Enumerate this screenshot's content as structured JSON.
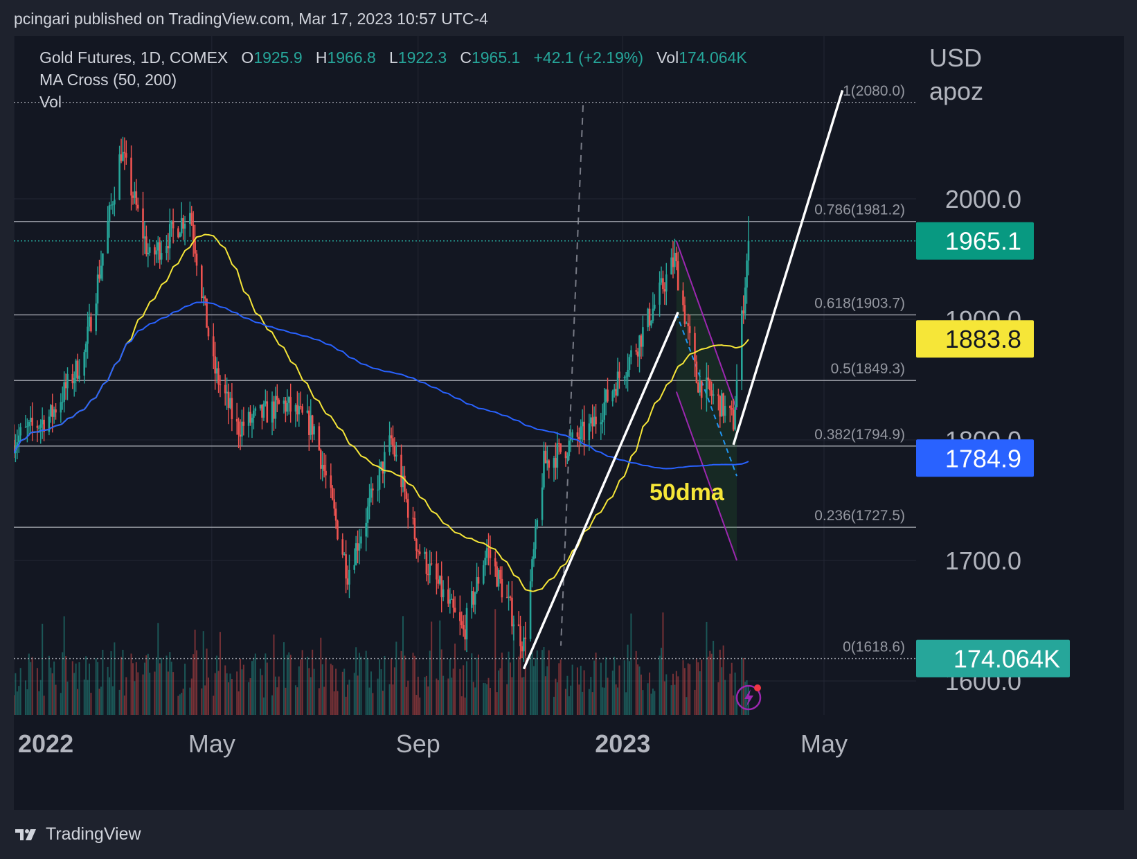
{
  "header": {
    "published_line": "pcingari published on TradingView.com, Mar 17, 2023 10:57 UTC-4"
  },
  "legend": {
    "symbol": "Gold Futures, 1D, COMEX",
    "o_label": "O",
    "o_value": "1925.9",
    "h_label": "H",
    "h_value": "1966.8",
    "l_label": "L",
    "l_value": "1922.3",
    "c_label": "C",
    "c_value": "1965.1",
    "change": "+42.1 (+2.19%)",
    "vol_label": "Vol",
    "vol_value": "174.064K",
    "indicator": "MA Cross (50, 200)",
    "vol_indicator": "Vol"
  },
  "axis": {
    "currency_line1": "USD",
    "currency_line2": "apoz"
  },
  "footer": {
    "brand": "TradingView"
  },
  "colors": {
    "background": "#131722",
    "up": "#26a69a",
    "down": "#ef5350",
    "ma50": "#f6e638",
    "ma200": "#2962ff",
    "fib": "#9598a1",
    "channel": "#9c27b0"
  },
  "chart_data": {
    "type": "candlestick",
    "title": "Gold Futures, 1D, COMEX",
    "ylabel": "USD apoz",
    "ylim": [
      1550,
      2130
    ],
    "y_ticks": [
      "1600.0",
      "1700.0",
      "1800.0",
      "1900.0",
      "2000.0"
    ],
    "x_ticks": [
      "2022",
      "May",
      "Sep",
      "2023",
      "May"
    ],
    "approximate_closes": [
      {
        "date": "2022-01-03",
        "close": 1800
      },
      {
        "date": "2022-01-25",
        "close": 1820
      },
      {
        "date": "2022-02-14",
        "close": 1870
      },
      {
        "date": "2022-03-08",
        "close": 2040
      },
      {
        "date": "2022-03-25",
        "close": 1950
      },
      {
        "date": "2022-04-18",
        "close": 1990
      },
      {
        "date": "2022-05-02",
        "close": 1860
      },
      {
        "date": "2022-05-16",
        "close": 1810
      },
      {
        "date": "2022-06-13",
        "close": 1830
      },
      {
        "date": "2022-07-01",
        "close": 1810
      },
      {
        "date": "2022-07-21",
        "close": 1690
      },
      {
        "date": "2022-08-16",
        "close": 1800
      },
      {
        "date": "2022-09-01",
        "close": 1710
      },
      {
        "date": "2022-09-28",
        "close": 1640
      },
      {
        "date": "2022-10-12",
        "close": 1710
      },
      {
        "date": "2022-11-03",
        "close": 1630
      },
      {
        "date": "2022-11-15",
        "close": 1780
      },
      {
        "date": "2022-12-13",
        "close": 1810
      },
      {
        "date": "2023-01-10",
        "close": 1880
      },
      {
        "date": "2023-02-01",
        "close": 1950
      },
      {
        "date": "2023-02-14",
        "close": 1850
      },
      {
        "date": "2023-02-28",
        "close": 1830
      },
      {
        "date": "2023-03-08",
        "close": 1815
      },
      {
        "date": "2023-03-17",
        "close": 1965.1
      }
    ],
    "series": [
      {
        "name": "MA 50",
        "value_last": 1883.8
      },
      {
        "name": "MA 200",
        "value_last": 1784.9
      }
    ],
    "fib_levels": [
      {
        "label": "1(2080.0)",
        "ratio": 1,
        "price": 2080.0
      },
      {
        "label": "0.786(1981.2)",
        "ratio": 0.786,
        "price": 1981.2
      },
      {
        "label": "0.618(1903.7)",
        "ratio": 0.618,
        "price": 1903.7
      },
      {
        "label": "0.5(1849.3)",
        "ratio": 0.5,
        "price": 1849.3
      },
      {
        "label": "0.382(1794.9)",
        "ratio": 0.382,
        "price": 1794.9
      },
      {
        "label": "0.236(1727.5)",
        "ratio": 0.236,
        "price": 1727.5
      },
      {
        "label": "0(1618.6)",
        "ratio": 0,
        "price": 1618.6
      }
    ],
    "price_tags": [
      {
        "label": "1965.1",
        "price": 1965.1,
        "color": "#089981",
        "text": "#ffffff"
      },
      {
        "label": "1883.8",
        "price": 1883.8,
        "color": "#f6e638",
        "text": "#131722"
      },
      {
        "label": "1784.9",
        "price": 1784.9,
        "color": "#2962ff",
        "text": "#ffffff"
      },
      {
        "label": "174.064K",
        "price": 1618.6,
        "color": "#26a69a",
        "text": "#ffffff"
      }
    ],
    "annotations": [
      {
        "text": "50dma",
        "color": "#f6e638"
      }
    ],
    "grid": true,
    "legend_position": "top-left"
  }
}
